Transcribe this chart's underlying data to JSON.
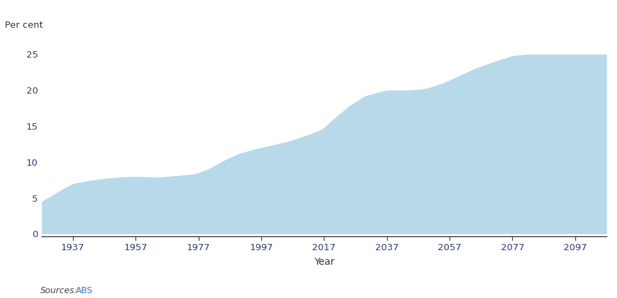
{
  "years": [
    1927,
    1932,
    1937,
    1942,
    1947,
    1952,
    1957,
    1962,
    1965,
    1967,
    1970,
    1975,
    1977,
    1980,
    1985,
    1990,
    1995,
    1997,
    2000,
    2005,
    2010,
    2015,
    2017,
    2020,
    2025,
    2030,
    2035,
    2037,
    2040,
    2043,
    2047,
    2050,
    2055,
    2060,
    2065,
    2070,
    2075,
    2077,
    2082,
    2087,
    2092,
    2097,
    2107
  ],
  "values": [
    4.5,
    5.8,
    7.0,
    7.4,
    7.7,
    7.9,
    8.0,
    7.9,
    7.9,
    8.0,
    8.1,
    8.3,
    8.5,
    9.0,
    10.2,
    11.2,
    11.8,
    12.0,
    12.3,
    12.8,
    13.5,
    14.3,
    14.8,
    16.0,
    17.8,
    19.2,
    19.8,
    20.0,
    20.0,
    20.0,
    20.1,
    20.3,
    21.0,
    22.0,
    23.0,
    23.8,
    24.5,
    24.8,
    25.0,
    25.0,
    25.0,
    25.0,
    25.0
  ],
  "fill_color": "#b8d9ea",
  "ylabel": "Per cent",
  "xlabel": "Year",
  "yticks": [
    0,
    5,
    10,
    15,
    20,
    25
  ],
  "xticks": [
    1937,
    1957,
    1977,
    1997,
    2017,
    2037,
    2057,
    2077,
    2097
  ],
  "ylim": [
    -0.3,
    27
  ],
  "xlim": [
    1927,
    2107
  ],
  "source_italic": "Sources:",
  "source_normal": "ABS",
  "tick_color": "#555555",
  "label_color": "#333333",
  "source_blue": "#4472c4",
  "background_color": "#ffffff",
  "ylabel_fontsize": 9.5,
  "xlabel_fontsize": 10,
  "tick_fontsize": 9.5,
  "source_fontsize": 9
}
